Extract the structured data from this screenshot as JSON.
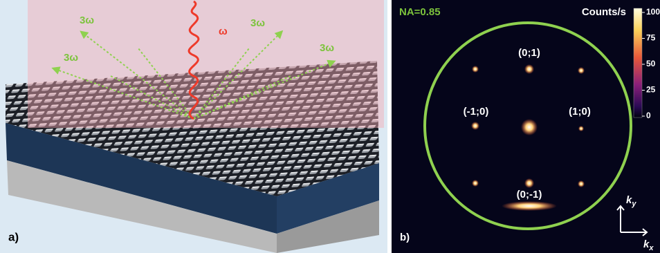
{
  "panel_a": {
    "label": "a)",
    "pump_label": "ω",
    "harmonic_labels": [
      "3ω",
      "3ω",
      "3ω",
      "3ω"
    ]
  },
  "panel_b": {
    "label": "b)",
    "na_label": "NA=0.85",
    "colorbar": {
      "title": "Counts/s",
      "ticks": [
        100,
        75,
        50,
        25,
        0
      ]
    },
    "orders": [
      "(0;1)",
      "(-1;0)",
      "(1;0)",
      "(0;-1)"
    ],
    "axes": {
      "ky": {
        "base": "k",
        "sub": "y"
      },
      "kx": {
        "base": "k",
        "sub": "x"
      }
    }
  }
}
